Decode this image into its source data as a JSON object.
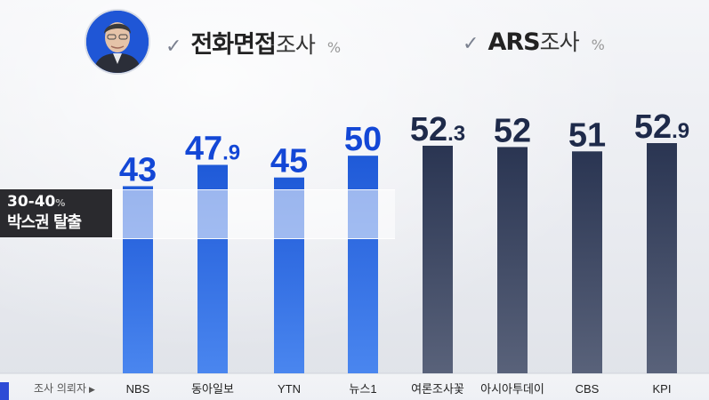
{
  "header": {
    "left_title_bold": "전화면접",
    "left_title_rest": "조사",
    "left_unit": "%",
    "right_title_bold": "ARS",
    "right_title_rest": "조사",
    "right_unit": "%",
    "check_icon": "check-icon"
  },
  "badge": {
    "line1": "30-40",
    "line1_unit": "%",
    "line2": "박스권 탈출"
  },
  "axis_caption": "조사 의뢰자",
  "colors": {
    "phone_bar": "#1f5ad8",
    "ars_bar": "#2a3552",
    "phone_label": "#1347d6",
    "ars_label": "#1e2a4a"
  },
  "chart_data": {
    "type": "bar",
    "categories": [
      "NBS",
      "동아일보",
      "YTN",
      "뉴스1",
      "여론조사꽃",
      "아시아투데이",
      "CBS",
      "KPI"
    ],
    "groups": [
      "phone",
      "phone",
      "phone",
      "phone",
      "ars",
      "ars",
      "ars",
      "ars"
    ],
    "values": [
      43,
      47.9,
      45,
      50,
      52.3,
      52,
      51,
      52.9
    ],
    "labels": [
      {
        "int": "43",
        "dec": ""
      },
      {
        "int": "47",
        "dec": ".9"
      },
      {
        "int": "45",
        "dec": ""
      },
      {
        "int": "50",
        "dec": ""
      },
      {
        "int": "52",
        "dec": ".3"
      },
      {
        "int": "52",
        "dec": ""
      },
      {
        "int": "51",
        "dec": ""
      },
      {
        "int": "52",
        "dec": ".9"
      }
    ],
    "xlabel": "조사 의뢰자",
    "ylabel": "",
    "unit": "%"
  }
}
